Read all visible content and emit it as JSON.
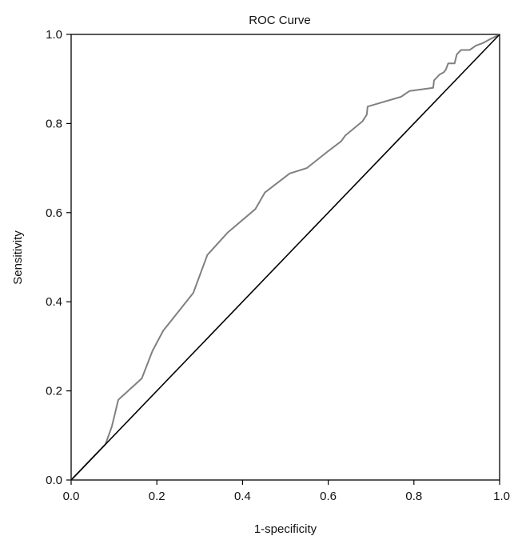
{
  "chart_data": {
    "type": "line",
    "title": "ROC Curve",
    "xlabel": "1-specificity",
    "ylabel": "Sensitivity",
    "xlim": [
      0,
      1
    ],
    "ylim": [
      0,
      1
    ],
    "xticks": [
      "0.0",
      "0.2",
      "0.4",
      "0.6",
      "0.8",
      "1.0"
    ],
    "yticks": [
      "0.0",
      "0.2",
      "0.4",
      "0.6",
      "0.8",
      "1.0"
    ],
    "grid": false,
    "series": [
      {
        "color": "#808080",
        "x": [
          0.0,
          0.02,
          0.08,
          0.095,
          0.11,
          0.165,
          0.19,
          0.215,
          0.285,
          0.318,
          0.365,
          0.43,
          0.452,
          0.51,
          0.55,
          0.6,
          0.63,
          0.64,
          0.68,
          0.69,
          0.692,
          0.77,
          0.79,
          0.845,
          0.847,
          0.86,
          0.87,
          0.875,
          0.88,
          0.895,
          0.9,
          0.91,
          0.93,
          0.945,
          0.96,
          0.975,
          0.99,
          1.0
        ],
        "y": [
          0.0,
          0.02,
          0.08,
          0.12,
          0.18,
          0.228,
          0.29,
          0.335,
          0.42,
          0.505,
          0.555,
          0.608,
          0.645,
          0.688,
          0.7,
          0.738,
          0.76,
          0.773,
          0.805,
          0.82,
          0.838,
          0.86,
          0.873,
          0.88,
          0.897,
          0.91,
          0.915,
          0.922,
          0.935,
          0.935,
          0.955,
          0.965,
          0.965,
          0.975,
          0.98,
          0.988,
          0.995,
          1.0
        ]
      },
      {
        "color": "#000000",
        "x": [
          0,
          1
        ],
        "y": [
          0,
          1
        ]
      }
    ]
  }
}
